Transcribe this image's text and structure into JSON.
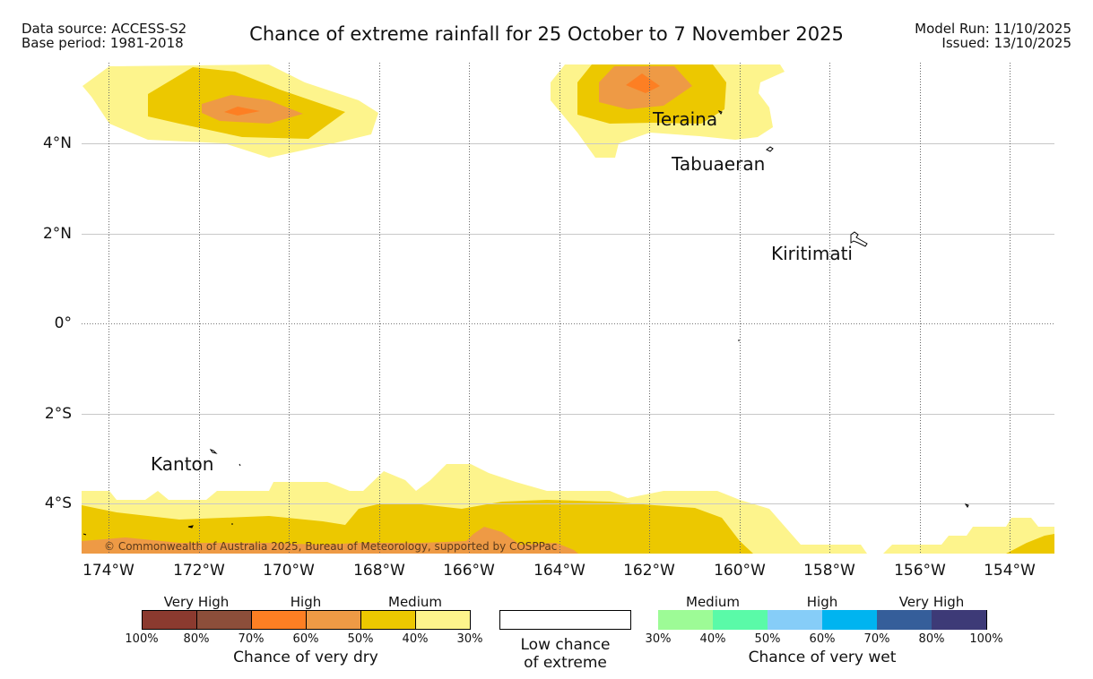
{
  "header": {
    "data_source": "Data source: ACCESS-S2",
    "base_period": "Base period: 1981-2018",
    "title": "Chance of extreme rainfall for 25 October to 7 November 2025",
    "model_run": "Model Run: 11/10/2025",
    "issued": "Issued: 13/10/2025"
  },
  "map": {
    "lat_labels": [
      "4°N",
      "2°N",
      "0°",
      "2°S",
      "4°S"
    ],
    "lon_labels": [
      "174°W",
      "172°W",
      "170°W",
      "168°W",
      "166°W",
      "164°W",
      "162°W",
      "160°W",
      "158°W",
      "156°W",
      "154°W"
    ],
    "places": [
      "Teraina",
      "Tabuaeran",
      "Kiritimati",
      "Kanton"
    ],
    "copyright": "© Commonwealth of Australia 2025, Bureau of Meteorology, supported by COSPPac"
  },
  "legend": {
    "dry": {
      "categories": [
        "Very High",
        "High",
        "Medium"
      ],
      "colors": [
        "#8b3a2f",
        "#8c4e3a",
        "#fd7f23",
        "#ee9a45",
        "#ecc800",
        "#fdf48c"
      ],
      "ticks": [
        "100%",
        "80%",
        "70%",
        "60%",
        "50%",
        "40%",
        "30%"
      ],
      "title": "Chance of very dry"
    },
    "low": {
      "line1": "Low chance",
      "line2": "of extreme"
    },
    "wet": {
      "categories": [
        "Medium",
        "High",
        "Very High"
      ],
      "colors": [
        "#9dfb96",
        "#5afaa8",
        "#86cdf8",
        "#00b4f0",
        "#355e9a",
        "#3d3a77"
      ],
      "ticks": [
        "30%",
        "40%",
        "50%",
        "60%",
        "70%",
        "80%",
        "100%"
      ],
      "title": "Chance of very wet"
    }
  }
}
